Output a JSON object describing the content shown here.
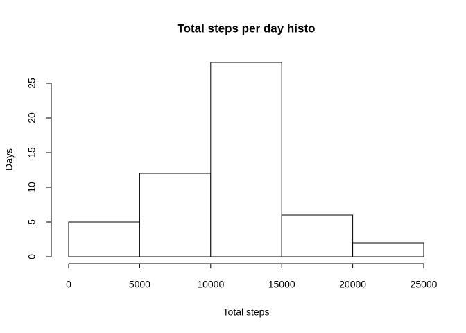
{
  "chart_data": {
    "type": "histogram",
    "title": "Total steps per day histo",
    "x_label": "Total steps",
    "y_label": "Days",
    "bins": [
      0,
      5000,
      10000,
      15000,
      20000,
      25000
    ],
    "counts": [
      5,
      12,
      28,
      6,
      2
    ],
    "color": "#ffffff",
    "xlim": [
      0,
      25000
    ],
    "xticks": [
      0,
      5000,
      10000,
      15000,
      20000,
      25000
    ],
    "ylim": [
      0,
      28
    ],
    "yticks": [
      0,
      5,
      10,
      15,
      20,
      25
    ]
  }
}
